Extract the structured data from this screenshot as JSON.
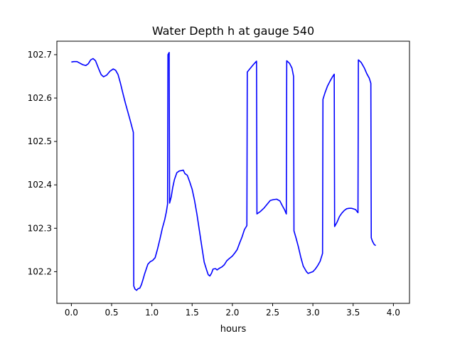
{
  "chart_data": {
    "type": "line",
    "title": "Water Depth h at gauge 540",
    "xlabel": "hours",
    "ylabel": "",
    "xlim": [
      -0.18,
      4.2
    ],
    "ylim": [
      102.127,
      102.731
    ],
    "xticks": [
      0.0,
      0.5,
      1.0,
      1.5,
      2.0,
      2.5,
      3.0,
      3.5,
      4.0
    ],
    "xtick_labels": [
      "0.0",
      "0.5",
      "1.0",
      "1.5",
      "2.0",
      "2.5",
      "3.0",
      "3.5",
      "4.0"
    ],
    "yticks": [
      102.2,
      102.3,
      102.4,
      102.5,
      102.6,
      102.7
    ],
    "ytick_labels": [
      "102.2",
      "102.3",
      "102.4",
      "102.5",
      "102.6",
      "102.7"
    ],
    "grid": false,
    "legend": "none",
    "series": [
      {
        "color": "#0000ff",
        "points": [
          [
            0.0,
            102.683
          ],
          [
            0.03,
            102.684
          ],
          [
            0.07,
            102.684
          ],
          [
            0.1,
            102.681
          ],
          [
            0.14,
            102.677
          ],
          [
            0.18,
            102.675
          ],
          [
            0.21,
            102.679
          ],
          [
            0.24,
            102.688
          ],
          [
            0.27,
            102.691
          ],
          [
            0.3,
            102.686
          ],
          [
            0.34,
            102.667
          ],
          [
            0.37,
            102.654
          ],
          [
            0.4,
            102.649
          ],
          [
            0.44,
            102.653
          ],
          [
            0.48,
            102.662
          ],
          [
            0.52,
            102.667
          ],
          [
            0.55,
            102.664
          ],
          [
            0.58,
            102.654
          ],
          [
            0.61,
            102.634
          ],
          [
            0.64,
            102.611
          ],
          [
            0.67,
            102.589
          ],
          [
            0.7,
            102.569
          ],
          [
            0.73,
            102.549
          ],
          [
            0.77,
            102.521
          ],
          [
            0.775,
            102.167
          ],
          [
            0.79,
            102.16
          ],
          [
            0.81,
            102.157
          ],
          [
            0.83,
            102.161
          ],
          [
            0.85,
            102.162
          ],
          [
            0.87,
            102.17
          ],
          [
            0.89,
            102.182
          ],
          [
            0.91,
            102.195
          ],
          [
            0.93,
            102.206
          ],
          [
            0.95,
            102.217
          ],
          [
            0.98,
            102.223
          ],
          [
            1.01,
            102.226
          ],
          [
            1.04,
            102.232
          ],
          [
            1.07,
            102.252
          ],
          [
            1.1,
            102.275
          ],
          [
            1.13,
            102.3
          ],
          [
            1.16,
            102.32
          ],
          [
            1.18,
            102.338
          ],
          [
            1.195,
            102.356
          ],
          [
            1.2,
            102.7
          ],
          [
            1.215,
            102.705
          ],
          [
            1.22,
            102.358
          ],
          [
            1.24,
            102.372
          ],
          [
            1.26,
            102.395
          ],
          [
            1.28,
            102.412
          ],
          [
            1.31,
            102.428
          ],
          [
            1.34,
            102.432
          ],
          [
            1.37,
            102.433
          ],
          [
            1.39,
            102.434
          ],
          [
            1.41,
            102.426
          ],
          [
            1.44,
            102.422
          ],
          [
            1.47,
            102.407
          ],
          [
            1.5,
            102.39
          ],
          [
            1.53,
            102.364
          ],
          [
            1.56,
            102.332
          ],
          [
            1.59,
            102.295
          ],
          [
            1.62,
            102.258
          ],
          [
            1.65,
            102.222
          ],
          [
            1.68,
            102.204
          ],
          [
            1.7,
            102.193
          ],
          [
            1.72,
            102.19
          ],
          [
            1.74,
            102.196
          ],
          [
            1.76,
            102.206
          ],
          [
            1.79,
            102.207
          ],
          [
            1.81,
            102.204
          ],
          [
            1.84,
            102.208
          ],
          [
            1.87,
            102.211
          ],
          [
            1.9,
            102.216
          ],
          [
            1.93,
            102.225
          ],
          [
            1.96,
            102.23
          ],
          [
            2.0,
            102.236
          ],
          [
            2.03,
            102.243
          ],
          [
            2.06,
            102.251
          ],
          [
            2.09,
            102.266
          ],
          [
            2.12,
            102.28
          ],
          [
            2.15,
            102.297
          ],
          [
            2.18,
            102.306
          ],
          [
            2.185,
            102.66
          ],
          [
            2.22,
            102.668
          ],
          [
            2.26,
            102.677
          ],
          [
            2.3,
            102.685
          ],
          [
            2.305,
            102.333
          ],
          [
            2.35,
            102.339
          ],
          [
            2.39,
            102.346
          ],
          [
            2.43,
            102.355
          ],
          [
            2.47,
            102.364
          ],
          [
            2.51,
            102.366
          ],
          [
            2.55,
            102.367
          ],
          [
            2.59,
            102.363
          ],
          [
            2.62,
            102.352
          ],
          [
            2.65,
            102.342
          ],
          [
            2.67,
            102.333
          ],
          [
            2.675,
            102.686
          ],
          [
            2.71,
            102.68
          ],
          [
            2.74,
            102.669
          ],
          [
            2.76,
            102.65
          ],
          [
            2.765,
            102.294
          ],
          [
            2.79,
            102.278
          ],
          [
            2.82,
            102.257
          ],
          [
            2.85,
            102.233
          ],
          [
            2.88,
            102.213
          ],
          [
            2.92,
            102.2
          ],
          [
            2.94,
            102.196
          ],
          [
            2.97,
            102.198
          ],
          [
            3.0,
            102.2
          ],
          [
            3.03,
            102.206
          ],
          [
            3.06,
            102.214
          ],
          [
            3.09,
            102.224
          ],
          [
            3.12,
            102.242
          ],
          [
            3.125,
            102.597
          ],
          [
            3.15,
            102.612
          ],
          [
            3.18,
            102.627
          ],
          [
            3.21,
            102.638
          ],
          [
            3.24,
            102.648
          ],
          [
            3.265,
            102.655
          ],
          [
            3.27,
            102.304
          ],
          [
            3.3,
            102.314
          ],
          [
            3.33,
            102.327
          ],
          [
            3.36,
            102.335
          ],
          [
            3.39,
            102.341
          ],
          [
            3.42,
            102.345
          ],
          [
            3.45,
            102.346
          ],
          [
            3.48,
            102.346
          ],
          [
            3.5,
            102.345
          ],
          [
            3.53,
            102.343
          ],
          [
            3.56,
            102.336
          ],
          [
            3.565,
            102.688
          ],
          [
            3.6,
            102.682
          ],
          [
            3.64,
            102.669
          ],
          [
            3.67,
            102.656
          ],
          [
            3.7,
            102.646
          ],
          [
            3.72,
            102.634
          ],
          [
            3.725,
            102.278
          ],
          [
            3.74,
            102.27
          ],
          [
            3.76,
            102.263
          ],
          [
            3.78,
            102.26
          ]
        ]
      }
    ]
  }
}
